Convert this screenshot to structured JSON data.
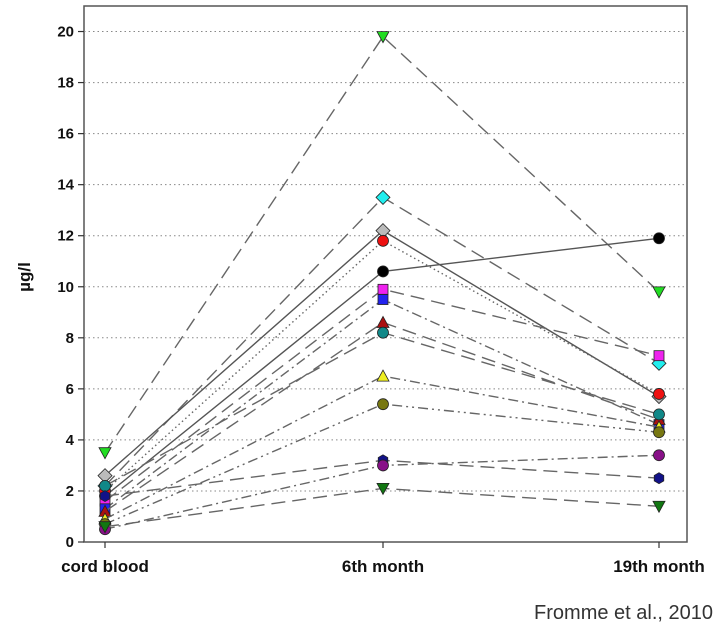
{
  "chart_data": {
    "type": "line",
    "categories": [
      "cord blood",
      "6th month",
      "19th month"
    ],
    "ylabel": "µg/l",
    "ylim": [
      0,
      21
    ],
    "yticks": [
      0,
      2,
      4,
      6,
      8,
      10,
      12,
      14,
      16,
      18,
      20
    ],
    "grid": "horizontal dotted",
    "legend": "none",
    "series": [
      {
        "values": [
          3.5,
          19.8,
          9.8
        ],
        "marker": "triangle-down",
        "color": "#22dd22",
        "dash": "long"
      },
      {
        "values": [
          2.2,
          13.5,
          7.0
        ],
        "marker": "diamond",
        "color": "#22eeee",
        "dash": "long"
      },
      {
        "values": [
          2.6,
          12.2,
          5.7
        ],
        "marker": "diamond",
        "color": "#bbbbbb",
        "dash": "solid"
      },
      {
        "values": [
          1.8,
          10.6,
          11.9
        ],
        "marker": "circle",
        "color": "#000000",
        "dash": "solid"
      },
      {
        "values": [
          2.0,
          11.8,
          5.8
        ],
        "marker": "circle",
        "color": "#ee1111",
        "dash": "dotted"
      },
      {
        "values": [
          1.6,
          9.9,
          7.3
        ],
        "marker": "square",
        "color": "#ee22ee",
        "dash": "long"
      },
      {
        "values": [
          1.3,
          9.5,
          4.6
        ],
        "marker": "square",
        "color": "#2222ee",
        "dash": "dashdot"
      },
      {
        "values": [
          1.2,
          8.6,
          4.8
        ],
        "marker": "triangle-up",
        "color": "#aa1111",
        "dash": "long"
      },
      {
        "values": [
          2.2,
          8.2,
          5.0
        ],
        "marker": "circle",
        "color": "#118888",
        "dash": "long"
      },
      {
        "values": [
          0.9,
          6.5,
          4.5
        ],
        "marker": "triangle-up",
        "color": "#eeee22",
        "dash": "dashdot"
      },
      {
        "values": [
          0.7,
          5.4,
          4.3
        ],
        "marker": "circle",
        "color": "#777711",
        "dash": "dashdotdot"
      },
      {
        "values": [
          1.8,
          3.2,
          2.5
        ],
        "marker": "hexagon",
        "color": "#111188",
        "dash": "long"
      },
      {
        "values": [
          0.5,
          3.0,
          3.4
        ],
        "marker": "circle",
        "color": "#881188",
        "dash": "dashdot"
      },
      {
        "values": [
          0.6,
          2.1,
          1.4
        ],
        "marker": "triangle-down",
        "color": "#117711",
        "dash": "long"
      }
    ]
  },
  "credit": "Fromme et al., 2010"
}
